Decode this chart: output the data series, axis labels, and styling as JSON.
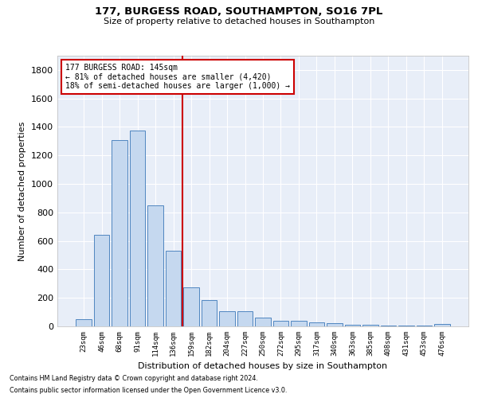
{
  "title1": "177, BURGESS ROAD, SOUTHAMPTON, SO16 7PL",
  "title2": "Size of property relative to detached houses in Southampton",
  "xlabel": "Distribution of detached houses by size in Southampton",
  "ylabel": "Number of detached properties",
  "categories": [
    "23sqm",
    "46sqm",
    "68sqm",
    "91sqm",
    "114sqm",
    "136sqm",
    "159sqm",
    "182sqm",
    "204sqm",
    "227sqm",
    "250sqm",
    "272sqm",
    "295sqm",
    "317sqm",
    "340sqm",
    "363sqm",
    "385sqm",
    "408sqm",
    "431sqm",
    "453sqm",
    "476sqm"
  ],
  "values": [
    50,
    640,
    1310,
    1375,
    850,
    530,
    275,
    185,
    105,
    105,
    62,
    40,
    38,
    30,
    20,
    10,
    10,
    8,
    3,
    3,
    18
  ],
  "bar_color": "#c5d8ef",
  "bar_edge_color": "#4f86c0",
  "bg_color": "#e8eef8",
  "grid_color": "#ffffff",
  "vline_color": "#cc0000",
  "annotation_text": "177 BURGESS ROAD: 145sqm\n← 81% of detached houses are smaller (4,420)\n18% of semi-detached houses are larger (1,000) →",
  "annotation_box_color": "#cc0000",
  "ylim": [
    0,
    1900
  ],
  "yticks": [
    0,
    200,
    400,
    600,
    800,
    1000,
    1200,
    1400,
    1600,
    1800
  ],
  "footnote1": "Contains HM Land Registry data © Crown copyright and database right 2024.",
  "footnote2": "Contains public sector information licensed under the Open Government Licence v3.0."
}
